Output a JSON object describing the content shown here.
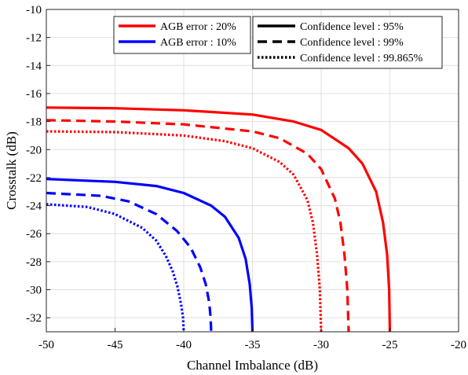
{
  "chart_data": {
    "type": "line",
    "xlabel": "Channel Imbalance (dB)",
    "ylabel": "Crosstalk (dB)",
    "xlim": [
      -50,
      -20
    ],
    "ylim": [
      -33,
      -10
    ],
    "xticks": [
      "-50",
      "-45",
      "-40",
      "-35",
      "-30",
      "-25",
      "-20"
    ],
    "yticks": [
      "-10",
      "-12",
      "-14",
      "-16",
      "-18",
      "-20",
      "-22",
      "-24",
      "-26",
      "-28",
      "-30",
      "-32"
    ],
    "grid": true,
    "legend_color": {
      "placement": "top-center",
      "entries": [
        {
          "label": "AGB error : 20%",
          "color": "#ff0000"
        },
        {
          "label": "AGB error : 10%",
          "color": "#0000ff"
        }
      ]
    },
    "legend_style": {
      "placement": "top-right",
      "entries": [
        {
          "label": "Confidence level : 95%",
          "style": "solid"
        },
        {
          "label": "Confidence level : 99%",
          "style": "dashed"
        },
        {
          "label": "Confidence level : 99.865%",
          "style": "dotted"
        }
      ]
    },
    "series": [
      {
        "agb_error": "20%",
        "confidence": "95%",
        "color": "#ff0000",
        "style": "solid",
        "x": [
          -50,
          -45,
          -40,
          -35,
          -32,
          -30,
          -28,
          -27,
          -26,
          -25.5,
          -25.2,
          -25.05,
          -25.0
        ],
        "y": [
          -17.0,
          -17.05,
          -17.2,
          -17.5,
          -18.0,
          -18.6,
          -19.9,
          -21.0,
          -23.0,
          -25.2,
          -27.5,
          -30.0,
          -33.0
        ]
      },
      {
        "agb_error": "20%",
        "confidence": "99%",
        "color": "#ff0000",
        "style": "dashed",
        "x": [
          -50,
          -45,
          -40,
          -35,
          -33,
          -31,
          -30,
          -29,
          -28.6,
          -28.3,
          -28.1,
          -28.0
        ],
        "y": [
          -17.9,
          -18.0,
          -18.2,
          -18.7,
          -19.2,
          -20.3,
          -21.4,
          -23.5,
          -25.2,
          -27.5,
          -30.0,
          -33.0
        ]
      },
      {
        "agb_error": "20%",
        "confidence": "99.865%",
        "color": "#ff0000",
        "style": "dotted",
        "x": [
          -50,
          -45,
          -40,
          -37,
          -35,
          -33,
          -32,
          -31,
          -30.6,
          -30.3,
          -30.1,
          -30.0
        ],
        "y": [
          -18.7,
          -18.75,
          -19.0,
          -19.4,
          -19.9,
          -20.9,
          -21.8,
          -23.6,
          -25.2,
          -27.5,
          -30.0,
          -33.0
        ]
      },
      {
        "agb_error": "10%",
        "confidence": "95%",
        "color": "#0000ff",
        "style": "solid",
        "x": [
          -50,
          -45,
          -42,
          -40,
          -38,
          -37,
          -36,
          -35.5,
          -35.2,
          -35.05,
          -35.0
        ],
        "y": [
          -22.1,
          -22.3,
          -22.6,
          -23.1,
          -24.0,
          -24.8,
          -26.3,
          -27.8,
          -29.6,
          -31.3,
          -33.0
        ]
      },
      {
        "agb_error": "10%",
        "confidence": "99%",
        "color": "#0000ff",
        "style": "dashed",
        "x": [
          -50,
          -46,
          -44,
          -42,
          -40.5,
          -39.5,
          -38.8,
          -38.4,
          -38.15,
          -38.05,
          -38.0
        ],
        "y": [
          -23.1,
          -23.3,
          -23.7,
          -24.6,
          -25.8,
          -27.0,
          -28.4,
          -29.6,
          -30.9,
          -31.9,
          -33.0
        ]
      },
      {
        "agb_error": "10%",
        "confidence": "99.865%",
        "color": "#0000ff",
        "style": "dotted",
        "x": [
          -50,
          -47,
          -45,
          -43,
          -42,
          -41.3,
          -40.8,
          -40.45,
          -40.2,
          -40.05,
          -40.0
        ],
        "y": [
          -23.9,
          -24.1,
          -24.6,
          -25.6,
          -26.5,
          -27.6,
          -28.7,
          -29.8,
          -31.0,
          -32.0,
          -33.0
        ]
      }
    ]
  }
}
